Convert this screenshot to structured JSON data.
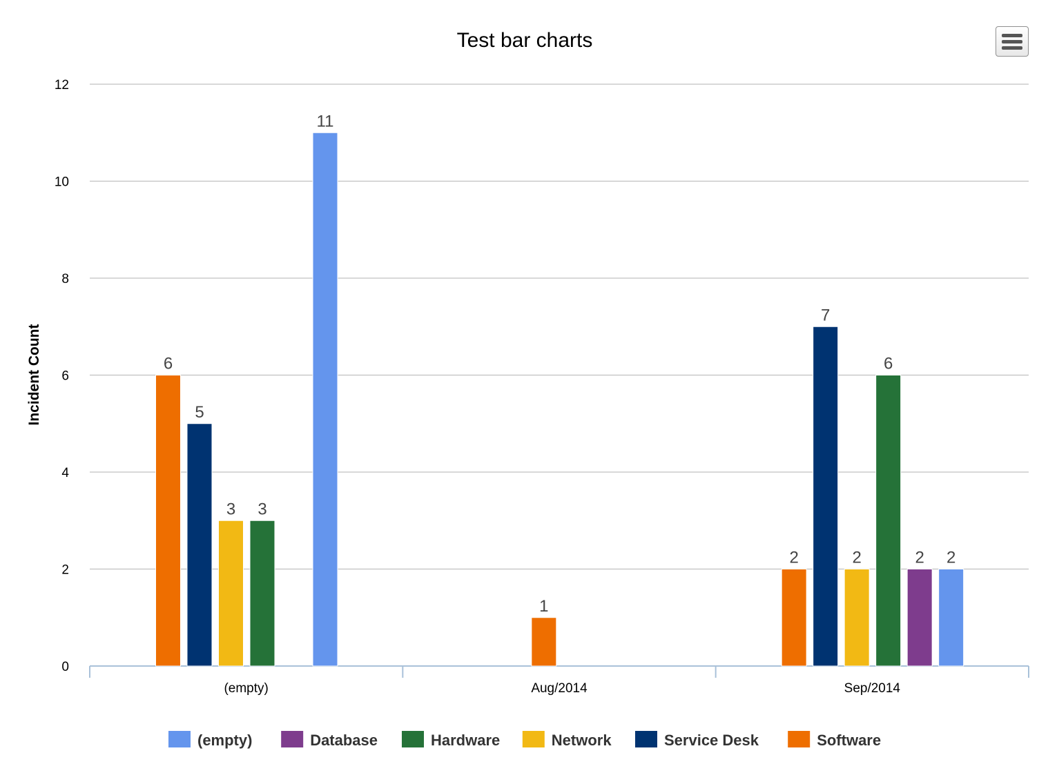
{
  "chart_data": {
    "type": "bar",
    "title": "Test bar charts",
    "ylabel": "Incident Count",
    "xlabel": "",
    "categories": [
      "(empty)",
      "Aug/2014",
      "Sep/2014"
    ],
    "ylim": [
      0,
      12
    ],
    "yticks": [
      0,
      2,
      4,
      6,
      8,
      10,
      12
    ],
    "grid": true,
    "legend_position": "bottom",
    "series": [
      {
        "name": "(empty)",
        "color": "#6495ED",
        "values": [
          11,
          null,
          2
        ]
      },
      {
        "name": "Database",
        "color": "#7E3C8D",
        "values": [
          null,
          null,
          2
        ]
      },
      {
        "name": "Hardware",
        "color": "#257238",
        "values": [
          3,
          null,
          6
        ]
      },
      {
        "name": "Network",
        "color": "#F2B914",
        "values": [
          3,
          null,
          2
        ]
      },
      {
        "name": "Service Desk",
        "color": "#003371",
        "values": [
          5,
          null,
          7
        ]
      },
      {
        "name": "Software",
        "color": "#EE6E00",
        "values": [
          6,
          1,
          2
        ]
      }
    ],
    "bar_order": [
      [
        {
          "series": "Software",
          "value": 6
        },
        {
          "series": "Service Desk",
          "value": 5
        },
        {
          "series": "Network",
          "value": 3
        },
        {
          "series": "Hardware",
          "value": 3
        },
        {
          "series": null,
          "value": null
        },
        {
          "series": "(empty)",
          "value": 11
        }
      ],
      [
        {
          "series": null,
          "value": null
        },
        {
          "series": null,
          "value": null
        },
        {
          "series": "Software",
          "value": 1
        }
      ],
      [
        {
          "series": "Software",
          "value": 2
        },
        {
          "series": "Service Desk",
          "value": 7
        },
        {
          "series": "Network",
          "value": 2
        },
        {
          "series": "Hardware",
          "value": 6
        },
        {
          "series": "Database",
          "value": 2
        },
        {
          "series": "(empty)",
          "value": 2
        }
      ]
    ]
  },
  "toolbar": {
    "menu_icon": "hamburger-menu-icon"
  }
}
